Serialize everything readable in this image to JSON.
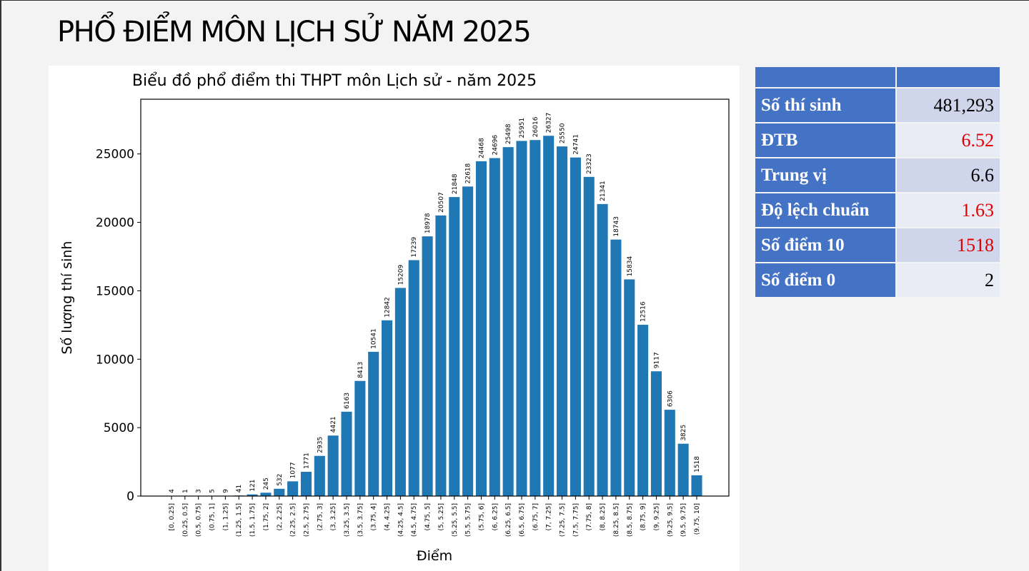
{
  "header": {
    "title": "PHỔ ĐIỂM MÔN LỊCH SỬ NĂM 2025"
  },
  "chart_data": {
    "type": "bar",
    "title": "Biểu đồ phổ điểm thi THPT môn Lịch sử - năm 2025",
    "x_label": "Điểm",
    "y_label": "Số lượng thí sinh",
    "color": "#1f77b4",
    "grid": false,
    "categories": [
      "[0, 0.25]",
      "(0.25, 0.5]",
      "(0.5, 0.75]",
      "(0.75, 1]",
      "(1, 1.25]",
      "(1.25, 1.5]",
      "(1.5, 1.75]",
      "(1.75, 2]",
      "(2, 2.25]",
      "(2.25, 2.5]",
      "(2.5, 2.75]",
      "(2.75, 3]",
      "(3, 3.25]",
      "(3.25, 3.5]",
      "(3.5, 3.75]",
      "(3.75, 4]",
      "(4, 4.25]",
      "(4.25, 4.5]",
      "(4.5, 4.75]",
      "(4.75, 5]",
      "(5, 5.25]",
      "(5.25, 5.5]",
      "(5.5, 5.75]",
      "(5.75, 6]",
      "(6, 6.25]",
      "(6.25, 6.5]",
      "(6.5, 6.75]",
      "(6.75, 7]",
      "(7, 7.25]",
      "(7.25, 7.5]",
      "(7.5, 7.75]",
      "(7.75, 8]",
      "(8, 8.25]",
      "(8.25, 8.5]",
      "(8.5, 8.75]",
      "(8.75, 9]",
      "(9, 9.25]",
      "(9.25, 9.5]",
      "(9.5, 9.75]",
      "(9.75, 10]"
    ],
    "values": [
      4,
      1,
      3,
      5,
      9,
      41,
      121,
      245,
      532,
      1077,
      1771,
      2935,
      4421,
      6163,
      8413,
      10541,
      12842,
      15209,
      17239,
      18978,
      20507,
      21848,
      22618,
      24468,
      24696,
      25498,
      25951,
      26016,
      26327,
      25550,
      24741,
      23323,
      21341,
      18743,
      15834,
      12516,
      9117,
      6306,
      3825,
      1518
    ],
    "ylim": [
      0,
      29000
    ],
    "yticks": [
      0,
      5000,
      10000,
      15000,
      20000,
      25000
    ]
  },
  "table": {
    "rows": [
      [
        "Số thí sinh",
        "481,293"
      ],
      [
        "ĐTB",
        "6.52"
      ],
      [
        "Trung vị",
        "6.6"
      ],
      [
        "Độ lệch chuẩn",
        "1.63"
      ],
      [
        "Số điểm 10",
        "1518"
      ],
      [
        "Số điểm 0",
        "2"
      ]
    ]
  }
}
